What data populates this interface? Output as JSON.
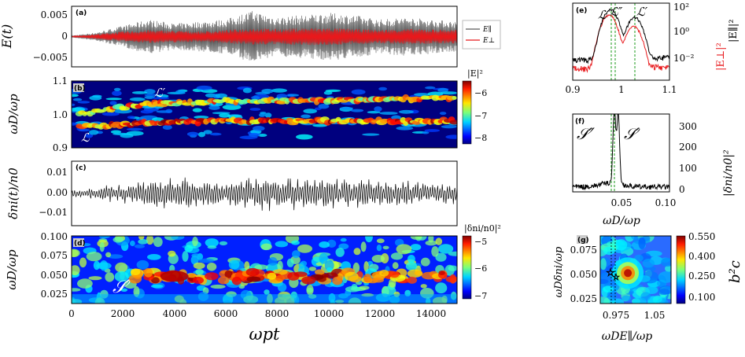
{
  "panels": {
    "a": {
      "tag": "(a)",
      "ylabel": "E(t)",
      "yticks": [
        "0.005",
        "0",
        "−0.005"
      ],
      "legend": [
        "E∥",
        "E⊥"
      ],
      "colors": {
        "par": "#5a5a5a",
        "perp": "#e8191c"
      }
    },
    "b": {
      "tag": "(b)",
      "ylabel": "ωD/ωp",
      "yticks": [
        "1.1",
        "1.0",
        "0.9"
      ],
      "cbar_label": "|E|²",
      "cbar_ticks": [
        "−6",
        "−7",
        "−8"
      ],
      "annotations": [
        "ℒ′",
        "ℒ"
      ]
    },
    "c": {
      "tag": "(c)",
      "ylabel": "δni(t)/n0",
      "yticks": [
        "0.01",
        "0.00",
        "−0.01"
      ]
    },
    "d": {
      "tag": "(d)",
      "ylabel": "ωD/ωp",
      "yticks": [
        "0.100",
        "0.075",
        "0.050",
        "0.025"
      ],
      "cbar_label": "|δni/n0|²",
      "cbar_ticks": [
        "−5",
        "−6",
        "−7"
      ],
      "annotations": [
        "𝒮′"
      ]
    },
    "time_axis": {
      "xlabel": "ωpt",
      "xticks": [
        "0",
        "2000",
        "4000",
        "6000",
        "8000",
        "10000",
        "12000",
        "14000"
      ]
    },
    "e": {
      "tag": "(e)",
      "labels": [
        "ℒ",
        "ℒ″",
        "ℒ′"
      ],
      "xticks": [
        "0.9",
        "1",
        "1.1"
      ],
      "yticks": [
        "10²",
        "10⁰",
        "10⁻²"
      ],
      "ylabel_right": "|E∥|²",
      "ylabel_left": "|E⊥|²"
    },
    "f": {
      "tag": "(f)",
      "labels": [
        "𝒮″",
        "𝒮′"
      ],
      "xticks": [
        "0.05",
        "0.10"
      ],
      "yticks": [
        "300",
        "200",
        "100",
        "0"
      ],
      "ylabel": "|δni/n0|²",
      "xlabel": "ωD/ωp"
    },
    "g": {
      "tag": "(g)",
      "xticks": [
        "0.975",
        "1.05"
      ],
      "yticks": [
        "0.075",
        "0.050",
        "0.025"
      ],
      "xlabel": "ωDE∥/ωp",
      "ylabel": "ωDδni/ωp",
      "cbar_label": "b²c",
      "cbar_ticks": [
        "0.550",
        "0.400",
        "0.250",
        "0.100"
      ]
    }
  },
  "chart_data": [
    {
      "type": "line",
      "panel": "a",
      "title": "",
      "xlabel": "ωpt",
      "ylabel": "E(t)",
      "xlim": [
        0,
        15000
      ],
      "ylim": [
        -0.007,
        0.007
      ],
      "series": [
        {
          "name": "E∥",
          "envelope_x": [
            0,
            1000,
            2000,
            3000,
            4000,
            5000,
            6000,
            7000,
            8000,
            9000,
            10000,
            11000,
            12000,
            13000,
            14000,
            15000
          ],
          "envelope_amp": [
            0.0002,
            0.001,
            0.0025,
            0.004,
            0.003,
            0.0035,
            0.004,
            0.006,
            0.0045,
            0.005,
            0.0055,
            0.005,
            0.004,
            0.0045,
            0.004,
            0.0035
          ]
        },
        {
          "name": "E⊥",
          "envelope_x": [
            0,
            1000,
            2000,
            3000,
            4000,
            5000,
            6000,
            7000,
            8000,
            9000,
            10000,
            11000,
            12000,
            13000,
            14000,
            15000
          ],
          "envelope_amp": [
            0.0001,
            0.0006,
            0.0012,
            0.0015,
            0.0014,
            0.0012,
            0.0015,
            0.002,
            0.0018,
            0.002,
            0.002,
            0.0018,
            0.0016,
            0.0018,
            0.0017,
            0.0016
          ]
        }
      ]
    },
    {
      "type": "heatmap",
      "panel": "b",
      "ylim": [
        0.9,
        1.1
      ],
      "clim": [
        -8.5,
        -5.7
      ],
      "ridges": [
        {
          "name": "ℒ",
          "y": [
            0.96,
            0.975,
            0.98,
            0.98,
            0.98,
            0.98
          ]
        },
        {
          "name": "ℒ′",
          "y": [
            1.0,
            1.03,
            1.04,
            1.04,
            1.045,
            1.05
          ]
        }
      ]
    },
    {
      "type": "line",
      "panel": "c",
      "ylim": [
        -0.017,
        0.017
      ],
      "envelope_amp": [
        0.002,
        0.004,
        0.006,
        0.008,
        0.009,
        0.008,
        0.007,
        0.01,
        0.009,
        0.009,
        0.008,
        0.008,
        0.007,
        0.007,
        0.006,
        0.006
      ]
    },
    {
      "type": "heatmap",
      "panel": "d",
      "ylim": [
        0.013,
        0.1
      ],
      "clim": [
        -7,
        -5
      ],
      "features": [
        {
          "name": "𝒮′",
          "x": 4000,
          "y": 0.048
        }
      ]
    },
    {
      "type": "line",
      "panel": "e",
      "xlim": [
        0.9,
        1.1
      ],
      "yscale": "log",
      "series": [
        {
          "name": "|E∥|²",
          "peaks": [
            [
              0.978,
              150
            ],
            [
              1.028,
              40
            ]
          ]
        },
        {
          "name": "|E⊥|²",
          "peaks": [
            [
              0.975,
              60
            ],
            [
              1.026,
              8
            ]
          ]
        }
      ],
      "vlines": [
        0.975,
        0.98,
        1.028
      ]
    },
    {
      "type": "line",
      "panel": "f",
      "xlim": [
        0,
        0.1
      ],
      "ylim": [
        0,
        380
      ],
      "peaks": [
        [
          0.043,
          355
        ],
        [
          0.047,
          340
        ]
      ],
      "vlines": [
        0.043,
        0.046
      ]
    },
    {
      "type": "heatmap",
      "panel": "g",
      "xlim": [
        0.9,
        1.1
      ],
      "ylim": [
        0.01,
        0.09
      ],
      "clim": [
        0.05,
        0.6
      ],
      "markers": [
        [
          0.978,
          0.048
        ],
        [
          0.985,
          0.046
        ]
      ]
    }
  ]
}
